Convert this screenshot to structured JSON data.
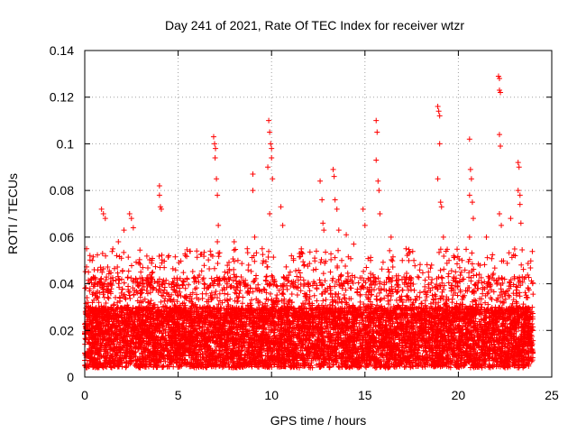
{
  "chart_data": {
    "type": "scatter",
    "title": "Day 241 of 2021, Rate Of TEC Index for receiver wtzr",
    "xlabel": "GPS time / hours",
    "ylabel": "ROTI / TECUs",
    "xlim": [
      0,
      25
    ],
    "ylim": [
      0,
      0.14
    ],
    "xticks": [
      "0",
      "5",
      "10",
      "15",
      "20",
      "25"
    ],
    "yticks": [
      "0",
      "0.02",
      "0.04",
      "0.06",
      "0.08",
      "0.1",
      "0.12",
      "0.14"
    ],
    "grid": true,
    "marker": "+",
    "color": "#ff0000",
    "x_range_of_data": [
      0,
      24
    ],
    "series": [
      {
        "name": "ROTI",
        "points": [
          [
            0.1,
            0.055
          ],
          [
            0.2,
            0.045
          ],
          [
            0.4,
            0.05
          ],
          [
            0.9,
            0.072
          ],
          [
            1.0,
            0.07
          ],
          [
            1.1,
            0.068
          ],
          [
            1.8,
            0.058
          ],
          [
            2.1,
            0.063
          ],
          [
            2.4,
            0.07
          ],
          [
            2.5,
            0.068
          ],
          [
            2.6,
            0.064
          ],
          [
            3.0,
            0.045
          ],
          [
            3.6,
            0.05
          ],
          [
            4.0,
            0.082
          ],
          [
            4.0,
            0.078
          ],
          [
            4.05,
            0.073
          ],
          [
            4.1,
            0.072
          ],
          [
            4.5,
            0.04
          ],
          [
            6.9,
            0.103
          ],
          [
            6.95,
            0.1
          ],
          [
            7.0,
            0.098
          ],
          [
            6.98,
            0.094
          ],
          [
            7.05,
            0.085
          ],
          [
            7.1,
            0.078
          ],
          [
            7.15,
            0.065
          ],
          [
            7.1,
            0.058
          ],
          [
            7.5,
            0.045
          ],
          [
            8.0,
            0.058
          ],
          [
            8.2,
            0.05
          ],
          [
            8.7,
            0.055
          ],
          [
            9.0,
            0.087
          ],
          [
            9.0,
            0.08
          ],
          [
            9.1,
            0.06
          ],
          [
            9.5,
            0.055
          ],
          [
            9.8,
            0.09
          ],
          [
            9.85,
            0.11
          ],
          [
            9.9,
            0.105
          ],
          [
            9.95,
            0.1
          ],
          [
            10.0,
            0.098
          ],
          [
            10.0,
            0.094
          ],
          [
            10.05,
            0.085
          ],
          [
            9.9,
            0.07
          ],
          [
            10.5,
            0.073
          ],
          [
            10.6,
            0.065
          ],
          [
            11.0,
            0.045
          ],
          [
            11.5,
            0.053
          ],
          [
            12.4,
            0.054
          ],
          [
            12.6,
            0.084
          ],
          [
            12.7,
            0.076
          ],
          [
            12.75,
            0.066
          ],
          [
            12.8,
            0.063
          ],
          [
            13.3,
            0.089
          ],
          [
            13.35,
            0.086
          ],
          [
            13.4,
            0.076
          ],
          [
            13.5,
            0.072
          ],
          [
            13.6,
            0.063
          ],
          [
            14.0,
            0.061
          ],
          [
            14.4,
            0.057
          ],
          [
            14.9,
            0.072
          ],
          [
            15.0,
            0.065
          ],
          [
            15.3,
            0.05
          ],
          [
            15.6,
            0.11
          ],
          [
            15.65,
            0.105
          ],
          [
            15.6,
            0.093
          ],
          [
            15.7,
            0.084
          ],
          [
            15.75,
            0.08
          ],
          [
            15.8,
            0.07
          ],
          [
            16.4,
            0.06
          ],
          [
            17.0,
            0.05
          ],
          [
            17.2,
            0.055
          ],
          [
            18.4,
            0.045
          ],
          [
            18.9,
            0.116
          ],
          [
            18.95,
            0.114
          ],
          [
            19.0,
            0.112
          ],
          [
            19.0,
            0.1
          ],
          [
            18.9,
            0.085
          ],
          [
            19.05,
            0.075
          ],
          [
            19.1,
            0.073
          ],
          [
            19.2,
            0.06
          ],
          [
            19.5,
            0.05
          ],
          [
            20.2,
            0.05
          ],
          [
            20.6,
            0.102
          ],
          [
            20.65,
            0.089
          ],
          [
            20.7,
            0.085
          ],
          [
            20.6,
            0.078
          ],
          [
            20.75,
            0.075
          ],
          [
            20.8,
            0.068
          ],
          [
            20.6,
            0.06
          ],
          [
            21.5,
            0.06
          ],
          [
            22.15,
            0.129
          ],
          [
            22.2,
            0.128
          ],
          [
            22.2,
            0.123
          ],
          [
            22.25,
            0.122
          ],
          [
            22.2,
            0.104
          ],
          [
            22.25,
            0.099
          ],
          [
            22.2,
            0.07
          ],
          [
            22.3,
            0.065
          ],
          [
            22.8,
            0.068
          ],
          [
            23.2,
            0.092
          ],
          [
            23.25,
            0.09
          ],
          [
            23.2,
            0.08
          ],
          [
            23.3,
            0.078
          ],
          [
            23.3,
            0.074
          ],
          [
            23.35,
            0.066
          ]
        ]
      }
    ]
  }
}
